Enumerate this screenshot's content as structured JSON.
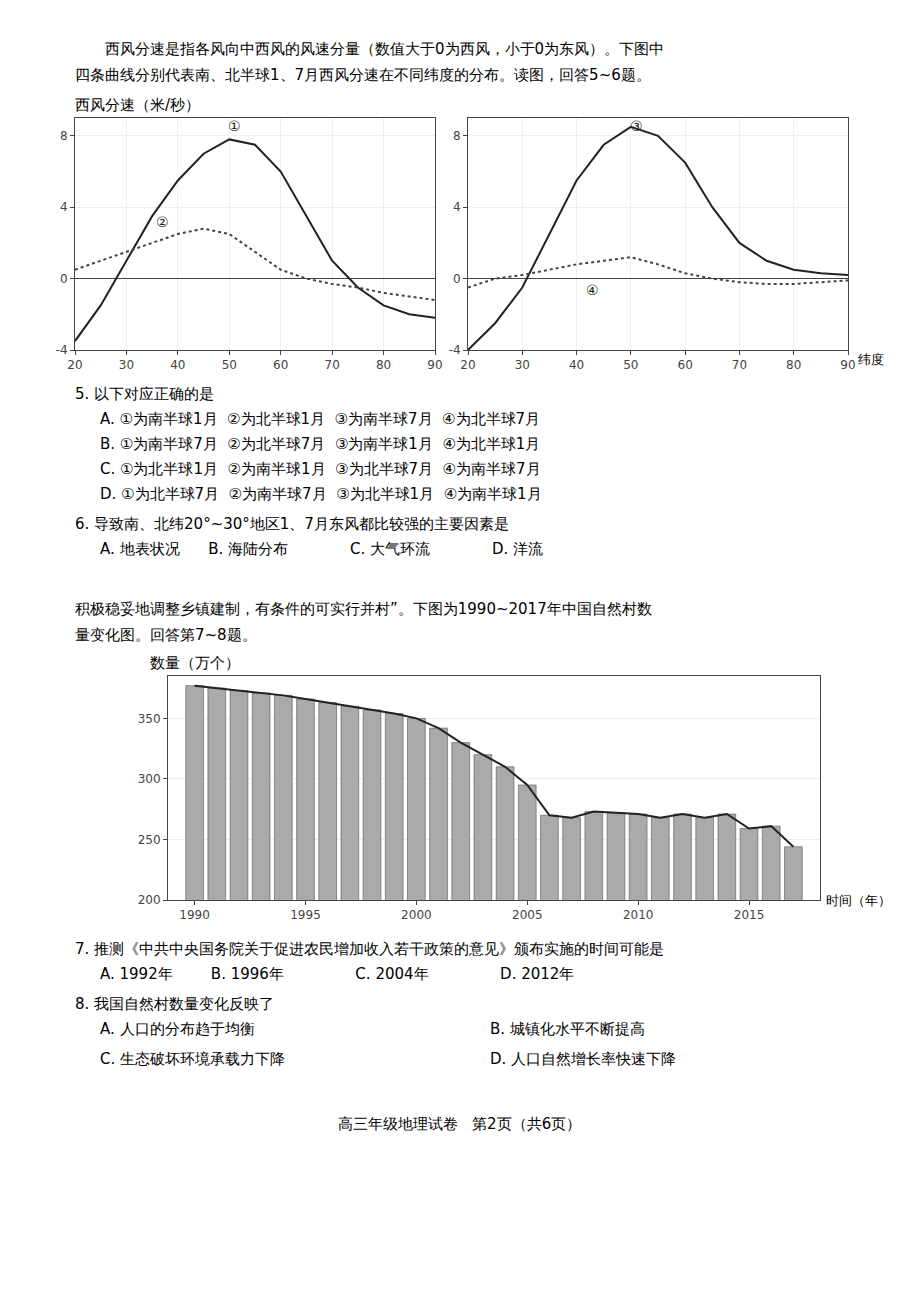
{
  "annotations": [
    "西风分速是指各风向中西风的风速分量（数值大于0为西风，小于0为东风）。下图中",
    "四条曲线分别代表南、北半球1、7月西风分速在不同纬度的分布。读图，回答5~6题。",
    "5. 以下对应正确的是",
    "A. ①为南半球1月  ②为北半球1月  ③为南半球7月  ④为北半球7月",
    "B. ①为南半球7月  ②为北半球7月  ③为南半球1月  ④为北半球1月",
    "C. ①为北半球1月  ②为南半球1月  ③为北半球7月  ④为南半球7月",
    "D. ①为北半球7月  ②为南半球7月  ③为北半球1月  ④为南半球1月",
    "6. 导致南、北纬20°~30°地区1、7月东风都比较强的主要因素是",
    "A. 地表状况      B. 海陆分布             C. 大气环流             D. 洋流",
    "积极稳妥地调整乡镇建制，有条件的可实行并村”。下图为1990~2017年中国自然村数",
    "量变化图。回答第7~8题。",
    "7. 推测《中共中央国务院关于促进农民增加收入若干政策的意见》颁布实施的时间可能是",
    "A. 1992年        B. 1996年               C. 2004年               D. 2012年",
    "8. 我国自然村数量变化反映了",
    "A. 人口的分布趋于均衡",
    "B. 城镇化水平不断提高",
    "C. 生态破坏环境承载力下降",
    "D. 人口自然增长率快速下降",
    "高三年级地理试卷   第2页（共6页）"
  ],
  "chart_data": [
    {
      "type": "line",
      "ylabel": "西风分速（米/秒）",
      "x": [
        20,
        25,
        30,
        35,
        40,
        45,
        50,
        55,
        60,
        65,
        70,
        75,
        80,
        85,
        90
      ],
      "series": [
        {
          "values": [
            -3.5,
            -1.5,
            1.0,
            3.5,
            5.5,
            7.0,
            7.8,
            7.5,
            6.0,
            3.5,
            1.0,
            -0.5,
            -1.5,
            -2.0,
            -2.2
          ],
          "color": "#222222",
          "line_style": "solid"
        },
        {
          "values": [
            0.5,
            1.0,
            1.5,
            2.0,
            2.5,
            2.8,
            2.5,
            1.5,
            0.5,
            0.0,
            -0.3,
            -0.5,
            -0.8,
            -1.0,
            -1.2
          ],
          "color": "#444444",
          "line_style": "dotted"
        }
      ],
      "annotations": [
        {
          "text": "①",
          "x": 51,
          "y": 8.0
        },
        {
          "text": "②",
          "x": 37,
          "y": 2.6
        }
      ],
      "xlim": [
        20,
        90
      ],
      "xticks": [
        20,
        30,
        40,
        50,
        60,
        70,
        80,
        90
      ],
      "ylim": [
        -4,
        9
      ],
      "yticks": [
        -4,
        0,
        4,
        8
      ],
      "grid": true
    },
    {
      "type": "line",
      "xlabel": "纬度",
      "x": [
        20,
        25,
        30,
        35,
        40,
        45,
        50,
        55,
        60,
        65,
        70,
        75,
        80,
        85,
        90
      ],
      "series": [
        {
          "values": [
            -4.0,
            -2.5,
            -0.5,
            2.5,
            5.5,
            7.5,
            8.5,
            8.0,
            6.5,
            4.0,
            2.0,
            1.0,
            0.5,
            0.3,
            0.2
          ],
          "color": "#222222",
          "line_style": "solid"
        },
        {
          "values": [
            -0.5,
            0.0,
            0.2,
            0.5,
            0.8,
            1.0,
            1.2,
            0.8,
            0.3,
            0.0,
            -0.2,
            -0.3,
            -0.3,
            -0.2,
            -0.1
          ],
          "color": "#444444",
          "line_style": "dotted"
        }
      ],
      "annotations": [
        {
          "text": "③",
          "x": 51,
          "y": 8.0
        },
        {
          "text": "④",
          "x": 43,
          "y": -1.2
        }
      ],
      "xlim": [
        20,
        90
      ],
      "xticks": [
        20,
        30,
        40,
        50,
        60,
        70,
        80,
        90
      ],
      "ylim": [
        -4,
        9
      ],
      "yticks": [
        -4,
        0,
        4,
        8
      ],
      "grid": true
    },
    {
      "type": "bar",
      "xlabel": "时间（年）",
      "ylabel": "数量（万个）",
      "x": [
        1990,
        1991,
        1992,
        1993,
        1994,
        1995,
        1996,
        1997,
        1998,
        1999,
        2000,
        2001,
        2002,
        2003,
        2004,
        2005,
        2006,
        2007,
        2008,
        2009,
        2010,
        2011,
        2012,
        2013,
        2014,
        2015,
        2016,
        2017
      ],
      "series": [
        {
          "type": "bar",
          "color": "#aaaaaa",
          "values": [
            377,
            375,
            373,
            371,
            369,
            366,
            363,
            360,
            357,
            354,
            350,
            342,
            330,
            320,
            310,
            295,
            270,
            268,
            273,
            272,
            271,
            268,
            271,
            268,
            271,
            259,
            261,
            244
          ]
        },
        {
          "type": "line",
          "color": "#222222",
          "values": [
            377,
            375,
            373,
            371,
            369,
            366,
            363,
            360,
            357,
            354,
            350,
            342,
            330,
            320,
            310,
            295,
            270,
            268,
            273,
            272,
            271,
            268,
            271,
            268,
            271,
            259,
            261,
            244
          ]
        }
      ],
      "xlim": [
        1988.8,
        2018.2
      ],
      "xticks": [
        1990,
        1995,
        2000,
        2005,
        2010,
        2015
      ],
      "ylim": [
        200,
        385
      ],
      "yticks": [
        200,
        250,
        300,
        350
      ],
      "grid": "y"
    }
  ]
}
